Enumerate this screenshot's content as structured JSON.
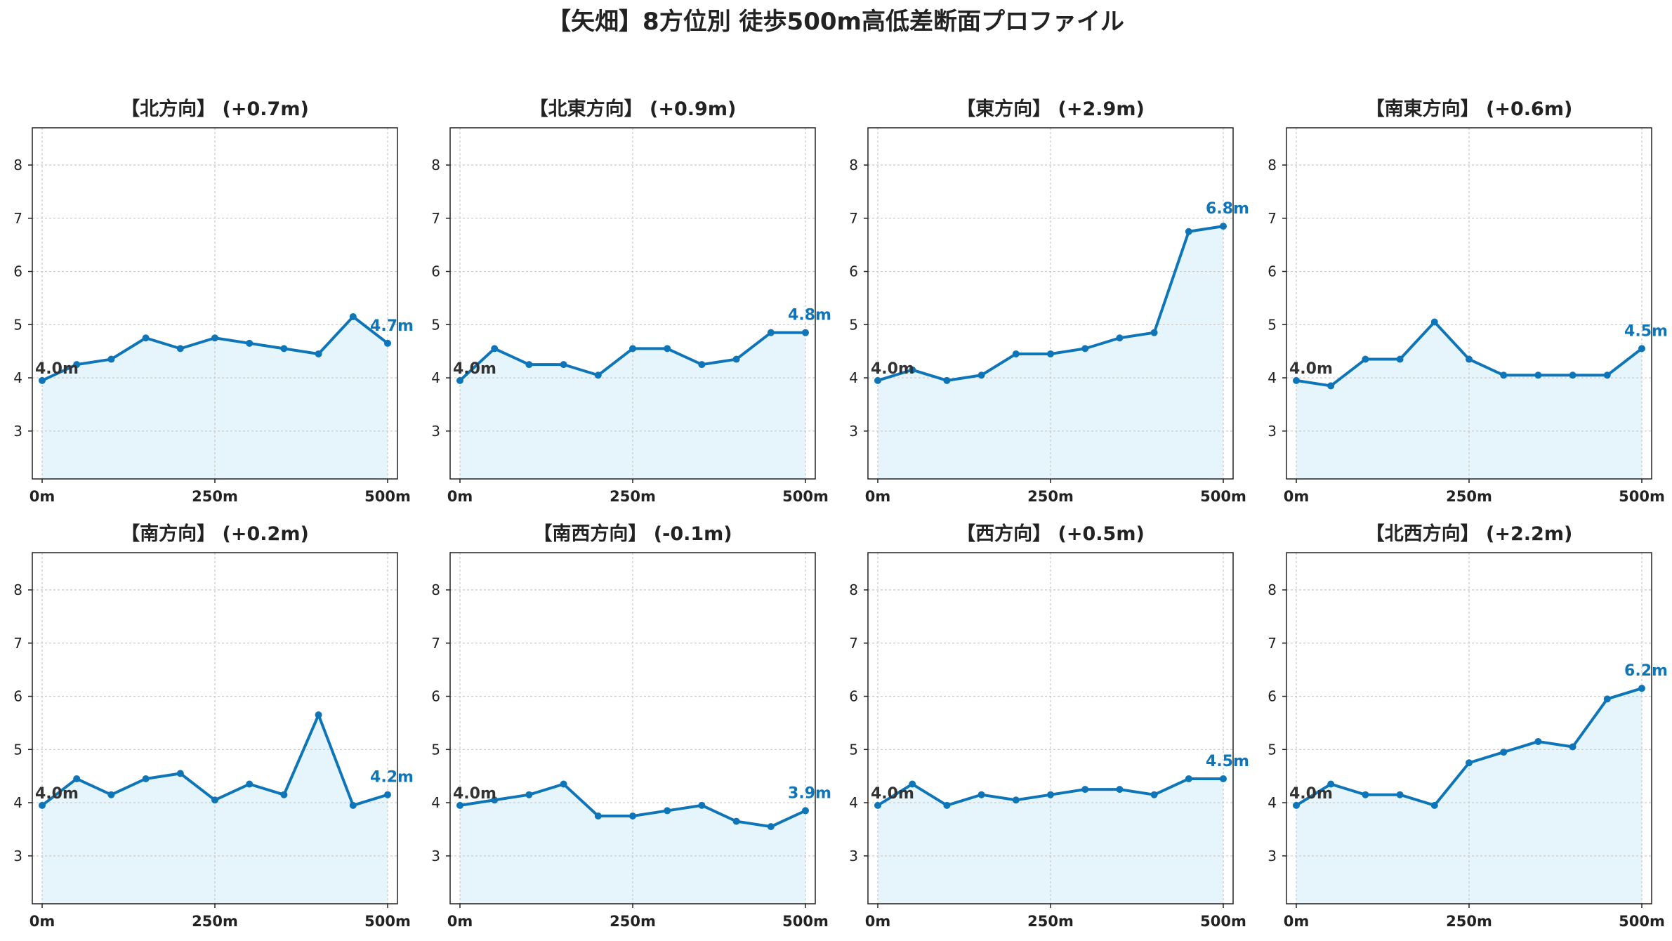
{
  "figure": {
    "title": "【矢畑】8方位別 徒歩500m高低差断面プロファイル",
    "line_color": "#0d75b8",
    "fill_color": "#e6f4fb",
    "start_label_color": "#333333"
  },
  "chart_data": [
    {
      "type": "area",
      "title": "【北方向】 (+0.7m)",
      "start_label": "4.0m",
      "end_label": "4.7m",
      "x": [
        0,
        50,
        100,
        150,
        200,
        250,
        300,
        350,
        400,
        450,
        500
      ],
      "y": [
        3.95,
        4.25,
        4.35,
        4.75,
        4.55,
        4.75,
        4.65,
        4.55,
        4.45,
        5.15,
        4.65
      ],
      "x_ticks": [
        "0m",
        "250m",
        "500m"
      ],
      "y_ticks": [
        3,
        4,
        5,
        6,
        7,
        8
      ],
      "ylim": [
        2.1,
        8.7
      ],
      "grid": true
    },
    {
      "type": "area",
      "title": "【北東方向】 (+0.9m)",
      "start_label": "4.0m",
      "end_label": "4.8m",
      "x": [
        0,
        50,
        100,
        150,
        200,
        250,
        300,
        350,
        400,
        450,
        500
      ],
      "y": [
        3.95,
        4.55,
        4.25,
        4.25,
        4.05,
        4.55,
        4.55,
        4.25,
        4.35,
        4.85,
        4.85
      ],
      "x_ticks": [
        "0m",
        "250m",
        "500m"
      ],
      "y_ticks": [
        3,
        4,
        5,
        6,
        7,
        8
      ],
      "ylim": [
        2.1,
        8.7
      ],
      "grid": true
    },
    {
      "type": "area",
      "title": "【東方向】 (+2.9m)",
      "start_label": "4.0m",
      "end_label": "6.8m",
      "x": [
        0,
        50,
        100,
        150,
        200,
        250,
        300,
        350,
        400,
        450,
        500
      ],
      "y": [
        3.95,
        4.15,
        3.95,
        4.05,
        4.45,
        4.45,
        4.55,
        4.75,
        4.85,
        6.75,
        6.85
      ],
      "x_ticks": [
        "0m",
        "250m",
        "500m"
      ],
      "y_ticks": [
        3,
        4,
        5,
        6,
        7,
        8
      ],
      "ylim": [
        2.1,
        8.7
      ],
      "grid": true
    },
    {
      "type": "area",
      "title": "【南東方向】 (+0.6m)",
      "start_label": "4.0m",
      "end_label": "4.5m",
      "x": [
        0,
        50,
        100,
        150,
        200,
        250,
        300,
        350,
        400,
        450,
        500
      ],
      "y": [
        3.95,
        3.85,
        4.35,
        4.35,
        5.05,
        4.35,
        4.05,
        4.05,
        4.05,
        4.05,
        4.55
      ],
      "x_ticks": [
        "0m",
        "250m",
        "500m"
      ],
      "y_ticks": [
        3,
        4,
        5,
        6,
        7,
        8
      ],
      "ylim": [
        2.1,
        8.7
      ],
      "grid": true
    },
    {
      "type": "area",
      "title": "【南方向】 (+0.2m)",
      "start_label": "4.0m",
      "end_label": "4.2m",
      "x": [
        0,
        50,
        100,
        150,
        200,
        250,
        300,
        350,
        400,
        450,
        500
      ],
      "y": [
        3.95,
        4.45,
        4.15,
        4.45,
        4.55,
        4.05,
        4.35,
        4.15,
        5.65,
        3.95,
        4.15
      ],
      "x_ticks": [
        "0m",
        "250m",
        "500m"
      ],
      "y_ticks": [
        3,
        4,
        5,
        6,
        7,
        8
      ],
      "ylim": [
        2.1,
        8.7
      ],
      "grid": true
    },
    {
      "type": "area",
      "title": "【南西方向】 (-0.1m)",
      "start_label": "4.0m",
      "end_label": "3.9m",
      "x": [
        0,
        50,
        100,
        150,
        200,
        250,
        300,
        350,
        400,
        450,
        500
      ],
      "y": [
        3.95,
        4.05,
        4.15,
        4.35,
        3.75,
        3.75,
        3.85,
        3.95,
        3.65,
        3.55,
        3.85
      ],
      "x_ticks": [
        "0m",
        "250m",
        "500m"
      ],
      "y_ticks": [
        3,
        4,
        5,
        6,
        7,
        8
      ],
      "ylim": [
        2.1,
        8.7
      ],
      "grid": true
    },
    {
      "type": "area",
      "title": "【西方向】 (+0.5m)",
      "start_label": "4.0m",
      "end_label": "4.5m",
      "x": [
        0,
        50,
        100,
        150,
        200,
        250,
        300,
        350,
        400,
        450,
        500
      ],
      "y": [
        3.95,
        4.35,
        3.95,
        4.15,
        4.05,
        4.15,
        4.25,
        4.25,
        4.15,
        4.45,
        4.45
      ],
      "x_ticks": [
        "0m",
        "250m",
        "500m"
      ],
      "y_ticks": [
        3,
        4,
        5,
        6,
        7,
        8
      ],
      "ylim": [
        2.1,
        8.7
      ],
      "grid": true
    },
    {
      "type": "area",
      "title": "【北西方向】 (+2.2m)",
      "start_label": "4.0m",
      "end_label": "6.2m",
      "x": [
        0,
        50,
        100,
        150,
        200,
        250,
        300,
        350,
        400,
        450,
        500
      ],
      "y": [
        3.95,
        4.35,
        4.15,
        4.15,
        3.95,
        4.75,
        4.95,
        5.15,
        5.05,
        5.95,
        6.15
      ],
      "x_ticks": [
        "0m",
        "250m",
        "500m"
      ],
      "y_ticks": [
        3,
        4,
        5,
        6,
        7,
        8
      ],
      "ylim": [
        2.1,
        8.7
      ],
      "grid": true
    }
  ]
}
